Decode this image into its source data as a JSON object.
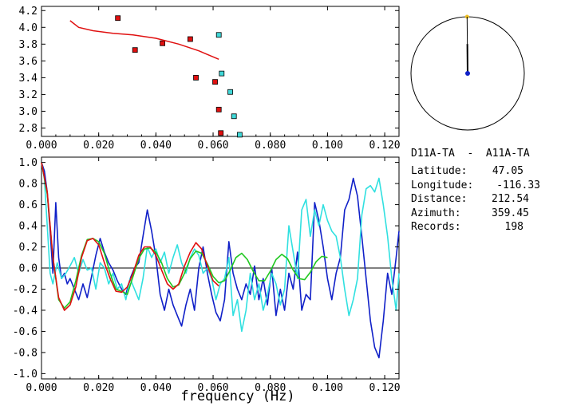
{
  "chart_data": [
    {
      "type": "scatter",
      "xlim": [
        0,
        0.125
      ],
      "ylim": [
        2.7,
        4.25
      ],
      "xticks": [
        "0.000",
        "0.020",
        "0.040",
        "0.060",
        "0.080",
        "0.100",
        "0.120"
      ],
      "yticks": [
        "2.8",
        "3.0",
        "3.2",
        "3.4",
        "3.6",
        "3.8",
        "4.0",
        "4.2"
      ],
      "grid": false,
      "series": [
        {
          "kind": "markers",
          "color": "#e01010",
          "x": [
            0.0267,
            0.0327,
            0.0423,
            0.052,
            0.054,
            0.0607,
            0.062,
            0.0627
          ],
          "y": [
            4.11,
            3.73,
            3.81,
            3.86,
            3.4,
            3.35,
            3.02,
            2.74
          ]
        },
        {
          "kind": "markers",
          "color": "#40d8d8",
          "x": [
            0.062,
            0.063,
            0.066,
            0.0673,
            0.0693
          ],
          "y": [
            3.91,
            3.45,
            3.23,
            2.94,
            2.72
          ]
        },
        {
          "kind": "line",
          "color": "#e01010",
          "x": [
            0.01,
            0.013,
            0.018,
            0.025,
            0.032,
            0.04,
            0.048,
            0.055,
            0.062
          ],
          "y": [
            4.08,
            4.0,
            3.96,
            3.93,
            3.91,
            3.87,
            3.8,
            3.72,
            3.62
          ]
        }
      ]
    },
    {
      "type": "line",
      "xlabel": "frequency (Hz)",
      "xlim": [
        0,
        0.125
      ],
      "ylim": [
        -1.05,
        1.05
      ],
      "xticks": [
        "0.000",
        "0.020",
        "0.040",
        "0.060",
        "0.080",
        "0.100",
        "0.120"
      ],
      "yticks": [
        "1.0",
        "0.8",
        "0.6",
        "0.4",
        "0.2",
        "0.0",
        "-0.2",
        "-0.4",
        "-0.6",
        "-0.8",
        "-1.0"
      ],
      "grid": false,
      "zero_line": true,
      "series": [
        {
          "color": "#1020c8",
          "x": [
            0.0,
            0.001,
            0.002,
            0.003,
            0.004,
            0.005,
            0.006,
            0.007,
            0.008,
            0.009,
            0.01,
            0.0115,
            0.013,
            0.0145,
            0.016,
            0.0175,
            0.019,
            0.0205,
            0.022,
            0.0235,
            0.025,
            0.0265,
            0.028,
            0.0295,
            0.031,
            0.0325,
            0.034,
            0.0355,
            0.037,
            0.0385,
            0.04,
            0.0415,
            0.043,
            0.0445,
            0.046,
            0.0475,
            0.049,
            0.0505,
            0.052,
            0.0535,
            0.055,
            0.0565,
            0.058,
            0.0595,
            0.061,
            0.0625,
            0.064,
            0.0655,
            0.067,
            0.0685,
            0.07,
            0.0715,
            0.073,
            0.0745,
            0.076,
            0.0775,
            0.079,
            0.0805,
            0.082,
            0.0835,
            0.085,
            0.0865,
            0.088,
            0.0895,
            0.091,
            0.0925,
            0.094,
            0.0955,
            0.097,
            0.0985,
            0.1,
            0.1015,
            0.103,
            0.1045,
            0.106,
            0.1075,
            0.109,
            0.1105,
            0.112,
            0.1135,
            0.115,
            0.1165,
            0.118,
            0.1195,
            0.121,
            0.1225,
            0.124,
            0.125
          ],
          "y": [
            1.0,
            0.92,
            0.72,
            0.35,
            -0.05,
            0.62,
            0.1,
            -0.1,
            -0.05,
            -0.15,
            -0.1,
            -0.2,
            -0.3,
            -0.15,
            -0.28,
            -0.08,
            0.12,
            0.28,
            0.15,
            0.05,
            -0.02,
            -0.12,
            -0.2,
            -0.25,
            -0.1,
            0.0,
            0.05,
            0.3,
            0.55,
            0.35,
            0.1,
            -0.25,
            -0.4,
            -0.2,
            -0.35,
            -0.45,
            -0.55,
            -0.35,
            -0.2,
            -0.4,
            0.0,
            0.2,
            -0.05,
            -0.25,
            -0.42,
            -0.5,
            -0.3,
            0.25,
            -0.05,
            -0.2,
            -0.3,
            -0.15,
            -0.25,
            0.02,
            -0.3,
            -0.1,
            -0.35,
            0.0,
            -0.45,
            -0.2,
            -0.4,
            -0.05,
            -0.2,
            0.15,
            -0.4,
            -0.25,
            -0.3,
            0.62,
            0.45,
            0.2,
            -0.1,
            -0.3,
            -0.05,
            0.1,
            0.55,
            0.65,
            0.85,
            0.68,
            0.3,
            -0.1,
            -0.5,
            -0.75,
            -0.85,
            -0.5,
            -0.05,
            -0.25,
            0.1,
            0.35
          ]
        },
        {
          "color": "#30e0e0",
          "x": [
            0.0,
            0.001,
            0.002,
            0.003,
            0.004,
            0.0055,
            0.007,
            0.0085,
            0.01,
            0.0115,
            0.013,
            0.0145,
            0.016,
            0.0175,
            0.019,
            0.0205,
            0.022,
            0.0235,
            0.025,
            0.0265,
            0.028,
            0.0295,
            0.031,
            0.0325,
            0.034,
            0.0355,
            0.037,
            0.0385,
            0.04,
            0.0415,
            0.043,
            0.0445,
            0.046,
            0.0475,
            0.049,
            0.0505,
            0.052,
            0.0535,
            0.055,
            0.0565,
            0.058,
            0.0595,
            0.061,
            0.0625,
            0.064,
            0.0655,
            0.067,
            0.0685,
            0.07,
            0.0715,
            0.073,
            0.0745,
            0.076,
            0.0775,
            0.079,
            0.0805,
            0.082,
            0.0835,
            0.085,
            0.0865,
            0.088,
            0.0895,
            0.091,
            0.0925,
            0.094,
            0.0955,
            0.097,
            0.0985,
            0.1,
            0.1015,
            0.103,
            0.1045,
            0.106,
            0.1075,
            0.109,
            0.1105,
            0.112,
            0.1135,
            0.115,
            0.1165,
            0.118,
            0.1195,
            0.121,
            0.1225,
            0.124,
            0.125
          ],
          "y": [
            1.0,
            0.85,
            0.4,
            -0.05,
            -0.15,
            0.05,
            -0.1,
            -0.05,
            0.02,
            0.1,
            -0.05,
            0.08,
            -0.02,
            0.0,
            -0.2,
            0.05,
            0.0,
            -0.15,
            -0.05,
            -0.2,
            -0.15,
            -0.3,
            -0.1,
            -0.2,
            -0.3,
            -0.1,
            0.2,
            0.1,
            0.18,
            0.05,
            0.15,
            -0.05,
            0.1,
            0.22,
            0.05,
            -0.05,
            0.1,
            0.18,
            0.12,
            -0.05,
            0.0,
            -0.1,
            -0.3,
            -0.15,
            -0.1,
            0.1,
            -0.45,
            -0.3,
            -0.6,
            -0.4,
            -0.05,
            -0.3,
            -0.15,
            -0.4,
            -0.25,
            -0.05,
            -0.15,
            -0.35,
            -0.2,
            0.4,
            0.15,
            -0.1,
            0.55,
            0.65,
            0.3,
            0.55,
            0.4,
            0.6,
            0.45,
            0.35,
            0.3,
            0.1,
            -0.2,
            -0.45,
            -0.3,
            -0.1,
            0.5,
            0.75,
            0.78,
            0.72,
            0.85,
            0.6,
            0.3,
            -0.1,
            -0.4,
            -0.05
          ]
        },
        {
          "color": "#20c820",
          "x": [
            0.0,
            0.002,
            0.004,
            0.006,
            0.008,
            0.01,
            0.012,
            0.014,
            0.016,
            0.018,
            0.02,
            0.022,
            0.024,
            0.026,
            0.028,
            0.03,
            0.032,
            0.034,
            0.036,
            0.038,
            0.04,
            0.042,
            0.044,
            0.046,
            0.048,
            0.05,
            0.052,
            0.054,
            0.056,
            0.058,
            0.06,
            0.062,
            0.064,
            0.066,
            0.068,
            0.07,
            0.072,
            0.074,
            0.076,
            0.078,
            0.08,
            0.082,
            0.084,
            0.086,
            0.088,
            0.09,
            0.092,
            0.094,
            0.096,
            0.098,
            0.1
          ],
          "y": [
            1.0,
            0.7,
            0.1,
            -0.3,
            -0.38,
            -0.32,
            -0.12,
            0.12,
            0.27,
            0.28,
            0.25,
            0.14,
            -0.05,
            -0.2,
            -0.22,
            -0.25,
            -0.08,
            0.09,
            0.18,
            0.19,
            0.15,
            0.05,
            -0.1,
            -0.18,
            -0.16,
            -0.05,
            0.09,
            0.16,
            0.14,
            0.04,
            -0.08,
            -0.14,
            -0.12,
            -0.02,
            0.1,
            0.14,
            0.08,
            -0.03,
            -0.12,
            -0.12,
            -0.03,
            0.08,
            0.13,
            0.09,
            -0.02,
            -0.1,
            -0.11,
            -0.04,
            0.06,
            0.11,
            0.1
          ]
        },
        {
          "color": "#e01010",
          "x": [
            0.0,
            0.002,
            0.004,
            0.006,
            0.008,
            0.01,
            0.012,
            0.014,
            0.016,
            0.018,
            0.02,
            0.022,
            0.024,
            0.026,
            0.028,
            0.03,
            0.032,
            0.034,
            0.036,
            0.038,
            0.04,
            0.042,
            0.044,
            0.046,
            0.048,
            0.05,
            0.052,
            0.054,
            0.056,
            0.058,
            0.06,
            0.062
          ],
          "y": [
            1.0,
            0.72,
            0.1,
            -0.28,
            -0.4,
            -0.35,
            -0.18,
            0.1,
            0.26,
            0.28,
            0.22,
            0.05,
            -0.1,
            -0.22,
            -0.23,
            -0.18,
            -0.05,
            0.12,
            0.2,
            0.2,
            0.12,
            -0.02,
            -0.15,
            -0.2,
            -0.15,
            0.02,
            0.15,
            0.24,
            0.18,
            0.02,
            -0.12,
            -0.17
          ]
        }
      ]
    }
  ],
  "polar": {
    "azimuth": 359.45,
    "distance_fraction": 0.52,
    "circle_color": "#000000",
    "line_color": "#000000",
    "station_color": "#1020c8",
    "marker_color": "#f0c020"
  },
  "info": {
    "pair": "D11A-TA  -  A11A-TA",
    "rows": [
      {
        "label": "Latitude:",
        "value": "47.05"
      },
      {
        "label": "Longitude:",
        "value": "-116.33"
      },
      {
        "label": "Distance:",
        "value": "212.54"
      },
      {
        "label": "Azimuth:",
        "value": "359.45"
      },
      {
        "label": "Records:",
        "value": "198"
      }
    ]
  }
}
